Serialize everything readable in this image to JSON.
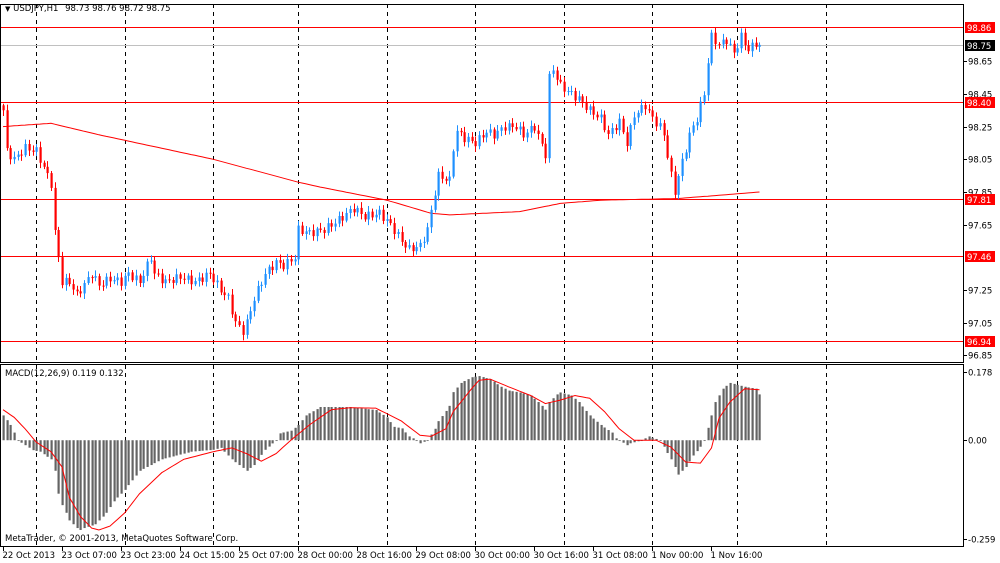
{
  "header": {
    "menu_icon": "triangle-down-icon",
    "symbol": "USDJPY,H1",
    "ohlc": "98.73 98.76 98.72 98.75"
  },
  "indicator": {
    "label": "MACD(12,26,9) 0.119 0.132"
  },
  "copyright": "MetaTrader, © 2001-2013, MetaQuotes Software Corp.",
  "colors": {
    "bull": "#1E90FF",
    "bear": "#FF0000",
    "ma_line": "#FF0000",
    "level_line": "#FF0000",
    "level_label_bg": "#FF0000",
    "current_label_bg": "#000000",
    "histogram": "#646464",
    "signal": "#FF0000",
    "grid_separator": "#000000"
  },
  "chart_data": [
    {
      "type": "candlestick",
      "symbol": "USDJPY",
      "timeframe": "H1",
      "ylim": [
        96.81,
        99.0
      ],
      "y_ticks": [
        "98.65",
        "98.45",
        "98.25",
        "98.05",
        "97.85",
        "97.65",
        "97.25",
        "97.05",
        "96.85"
      ],
      "bar_count": 206,
      "close_waypoints": [
        [
          0,
          98.35
        ],
        [
          1,
          98.1
        ],
        [
          3,
          98.05
        ],
        [
          6,
          98.12
        ],
        [
          9,
          98.1
        ],
        [
          11,
          98.0
        ],
        [
          13,
          97.9
        ],
        [
          14,
          97.6
        ],
        [
          15,
          97.45
        ],
        [
          16,
          97.3
        ],
        [
          18,
          97.3
        ],
        [
          20,
          97.22
        ],
        [
          24,
          97.35
        ],
        [
          26,
          97.28
        ],
        [
          29,
          97.32
        ],
        [
          32,
          97.3
        ],
        [
          34,
          97.35
        ],
        [
          37,
          97.3
        ],
        [
          40,
          97.45
        ],
        [
          41,
          97.35
        ],
        [
          44,
          97.3
        ],
        [
          48,
          97.33
        ],
        [
          52,
          97.3
        ],
        [
          56,
          97.35
        ],
        [
          59,
          97.25
        ],
        [
          61,
          97.2
        ],
        [
          63,
          97.05
        ],
        [
          65,
          97.0
        ],
        [
          66,
          97.05
        ],
        [
          68,
          97.2
        ],
        [
          71,
          97.35
        ],
        [
          74,
          97.42
        ],
        [
          76,
          97.4
        ],
        [
          79,
          97.45
        ],
        [
          80,
          97.62
        ],
        [
          83,
          97.6
        ],
        [
          87,
          97.62
        ],
        [
          91,
          97.68
        ],
        [
          95,
          97.75
        ],
        [
          98,
          97.7
        ],
        [
          102,
          97.72
        ],
        [
          105,
          97.65
        ],
        [
          108,
          97.55
        ],
        [
          110,
          97.5
        ],
        [
          113,
          97.52
        ],
        [
          115,
          97.62
        ],
        [
          117,
          97.85
        ],
        [
          118,
          97.95
        ],
        [
          121,
          97.92
        ],
        [
          122,
          98.12
        ],
        [
          123,
          98.22
        ],
        [
          125,
          98.18
        ],
        [
          128,
          98.15
        ],
        [
          131,
          98.22
        ],
        [
          133,
          98.2
        ],
        [
          136,
          98.25
        ],
        [
          139,
          98.25
        ],
        [
          141,
          98.2
        ],
        [
          144,
          98.25
        ],
        [
          147,
          98.08
        ],
        [
          148,
          98.55
        ],
        [
          149,
          98.6
        ],
        [
          151,
          98.5
        ],
        [
          154,
          98.45
        ],
        [
          156,
          98.42
        ],
        [
          159,
          98.35
        ],
        [
          162,
          98.3
        ],
        [
          164,
          98.2
        ],
        [
          167,
          98.28
        ],
        [
          169,
          98.15
        ],
        [
          171,
          98.32
        ],
        [
          174,
          98.38
        ],
        [
          176,
          98.3
        ],
        [
          178,
          98.25
        ],
        [
          179,
          98.2
        ],
        [
          181,
          97.95
        ],
        [
          182,
          97.85
        ],
        [
          183,
          97.95
        ],
        [
          186,
          98.2
        ],
        [
          188,
          98.3
        ],
        [
          189,
          98.38
        ],
        [
          190,
          98.45
        ],
        [
          191,
          98.65
        ],
        [
          192,
          98.8
        ],
        [
          194,
          98.75
        ],
        [
          196,
          98.78
        ],
        [
          198,
          98.7
        ],
        [
          200,
          98.8
        ],
        [
          202,
          98.72
        ],
        [
          204,
          98.76
        ],
        [
          205,
          98.75
        ]
      ],
      "moving_average_waypoints": [
        [
          0,
          98.25
        ],
        [
          13,
          98.27
        ],
        [
          26,
          98.2
        ],
        [
          57,
          98.05
        ],
        [
          80,
          97.91
        ],
        [
          86,
          97.88
        ],
        [
          104,
          97.8
        ],
        [
          116,
          97.72
        ],
        [
          121,
          97.71
        ],
        [
          140,
          97.73
        ],
        [
          151,
          97.78
        ],
        [
          162,
          97.8
        ],
        [
          183,
          97.81
        ],
        [
          205,
          97.85
        ]
      ],
      "horizontal_levels": [
        "98.86",
        "98.40",
        "97.81",
        "97.46",
        "96.94"
      ],
      "current_price": "98.75",
      "day_separator_bars": [
        9,
        33,
        57,
        80,
        104,
        128,
        152,
        176,
        199,
        223
      ],
      "x_tick_labels": [
        {
          "bar": 0,
          "label": "22 Oct 2013"
        },
        {
          "bar": 16,
          "label": "23 Oct 07:00"
        },
        {
          "bar": 32,
          "label": "23 Oct 23:00"
        },
        {
          "bar": 48,
          "label": "24 Oct 15:00"
        },
        {
          "bar": 64,
          "label": "25 Oct 07:00"
        },
        {
          "bar": 80,
          "label": "28 Oct 00:00"
        },
        {
          "bar": 96,
          "label": "28 Oct 16:00"
        },
        {
          "bar": 112,
          "label": "29 Oct 08:00"
        },
        {
          "bar": 128,
          "label": "30 Oct 00:00"
        },
        {
          "bar": 144,
          "label": "30 Oct 16:00"
        },
        {
          "bar": 160,
          "label": "31 Oct 08:00"
        },
        {
          "bar": 176,
          "label": "1 Nov 00:00"
        },
        {
          "bar": 192,
          "label": "1 Nov 16:00"
        }
      ]
    },
    {
      "type": "bar",
      "name": "MACD(12,26,9)",
      "ylim": [
        -0.277,
        0.197
      ],
      "y_ticks": [
        "0.178",
        "0.00",
        "-0.259"
      ],
      "histogram_waypoints": [
        [
          0,
          0.065
        ],
        [
          2,
          0.04
        ],
        [
          3,
          0.02
        ],
        [
          4,
          0
        ],
        [
          6,
          -0.013
        ],
        [
          8,
          -0.026
        ],
        [
          10,
          -0.03
        ],
        [
          13,
          -0.05
        ],
        [
          14,
          -0.08
        ],
        [
          15,
          -0.14
        ],
        [
          16,
          -0.17
        ],
        [
          18,
          -0.21
        ],
        [
          20,
          -0.23
        ],
        [
          21,
          -0.235
        ],
        [
          22,
          -0.23
        ],
        [
          25,
          -0.22
        ],
        [
          28,
          -0.19
        ],
        [
          30,
          -0.16
        ],
        [
          33,
          -0.13
        ],
        [
          37,
          -0.08
        ],
        [
          43,
          -0.05
        ],
        [
          51,
          -0.03
        ],
        [
          57,
          -0.025
        ],
        [
          59,
          -0.02
        ],
        [
          62,
          -0.05
        ],
        [
          66,
          -0.08
        ],
        [
          68,
          -0.065
        ],
        [
          71,
          -0.025
        ],
        [
          74,
          0
        ],
        [
          75,
          0.018
        ],
        [
          78,
          0.025
        ],
        [
          80,
          0.04
        ],
        [
          82,
          0.065
        ],
        [
          86,
          0.087
        ],
        [
          94,
          0.087
        ],
        [
          101,
          0.079
        ],
        [
          104,
          0.06
        ],
        [
          106,
          0.035
        ],
        [
          108,
          0.031
        ],
        [
          110,
          0.01
        ],
        [
          112,
          0
        ],
        [
          113,
          -0.008
        ],
        [
          115,
          0
        ],
        [
          117,
          0.03
        ],
        [
          118,
          0.05
        ],
        [
          121,
          0.09
        ],
        [
          122,
          0.126
        ],
        [
          124,
          0.15
        ],
        [
          127,
          0.165
        ],
        [
          129,
          0.168
        ],
        [
          132,
          0.16
        ],
        [
          135,
          0.14
        ],
        [
          137,
          0.13
        ],
        [
          140,
          0.125
        ],
        [
          143,
          0.117
        ],
        [
          145,
          0.1
        ],
        [
          147,
          0.08
        ],
        [
          148,
          0.1
        ],
        [
          150,
          0.12
        ],
        [
          151,
          0.125
        ],
        [
          154,
          0.117
        ],
        [
          156,
          0.1
        ],
        [
          159,
          0.065
        ],
        [
          162,
          0.04
        ],
        [
          165,
          0.02
        ],
        [
          166,
          0.005
        ],
        [
          167,
          0
        ],
        [
          169,
          -0.013
        ],
        [
          170,
          -0.008
        ],
        [
          173,
          0
        ],
        [
          175,
          0.01
        ],
        [
          178,
          0
        ],
        [
          179,
          -0.017
        ],
        [
          181,
          -0.05
        ],
        [
          183,
          -0.09
        ],
        [
          185,
          -0.07
        ],
        [
          187,
          -0.04
        ],
        [
          189,
          -0.017
        ],
        [
          190,
          0
        ],
        [
          192,
          0.065
        ],
        [
          193,
          0.1
        ],
        [
          195,
          0.135
        ],
        [
          197,
          0.15
        ],
        [
          199,
          0.145
        ],
        [
          201,
          0.14
        ],
        [
          204,
          0.135
        ],
        [
          205,
          0.12
        ]
      ],
      "signal_waypoints": [
        [
          0,
          0.08
        ],
        [
          3,
          0.06
        ],
        [
          6,
          0.03
        ],
        [
          9,
          -0.005
        ],
        [
          13,
          -0.03
        ],
        [
          16,
          -0.07
        ],
        [
          18,
          -0.15
        ],
        [
          21,
          -0.2
        ],
        [
          24,
          -0.23
        ],
        [
          26,
          -0.235
        ],
        [
          29,
          -0.225
        ],
        [
          33,
          -0.19
        ],
        [
          37,
          -0.14
        ],
        [
          43,
          -0.085
        ],
        [
          49,
          -0.05
        ],
        [
          57,
          -0.03
        ],
        [
          62,
          -0.02
        ],
        [
          66,
          -0.035
        ],
        [
          70,
          -0.055
        ],
        [
          74,
          -0.035
        ],
        [
          78,
          0
        ],
        [
          83,
          0.04
        ],
        [
          89,
          0.08
        ],
        [
          94,
          0.085
        ],
        [
          101,
          0.084
        ],
        [
          105,
          0.065
        ],
        [
          108,
          0.05
        ],
        [
          113,
          0.013
        ],
        [
          116,
          0.01
        ],
        [
          120,
          0.03
        ],
        [
          122,
          0.075
        ],
        [
          127,
          0.135
        ],
        [
          129,
          0.157
        ],
        [
          132,
          0.16
        ],
        [
          137,
          0.14
        ],
        [
          143,
          0.117
        ],
        [
          147,
          0.096
        ],
        [
          151,
          0.105
        ],
        [
          155,
          0.117
        ],
        [
          159,
          0.11
        ],
        [
          163,
          0.075
        ],
        [
          167,
          0.03
        ],
        [
          171,
          0
        ],
        [
          177,
          0
        ],
        [
          181,
          -0.018
        ],
        [
          185,
          -0.057
        ],
        [
          189,
          -0.06
        ],
        [
          192,
          -0.02
        ],
        [
          194,
          0.057
        ],
        [
          197,
          0.1
        ],
        [
          201,
          0.135
        ],
        [
          205,
          0.132
        ]
      ]
    }
  ]
}
